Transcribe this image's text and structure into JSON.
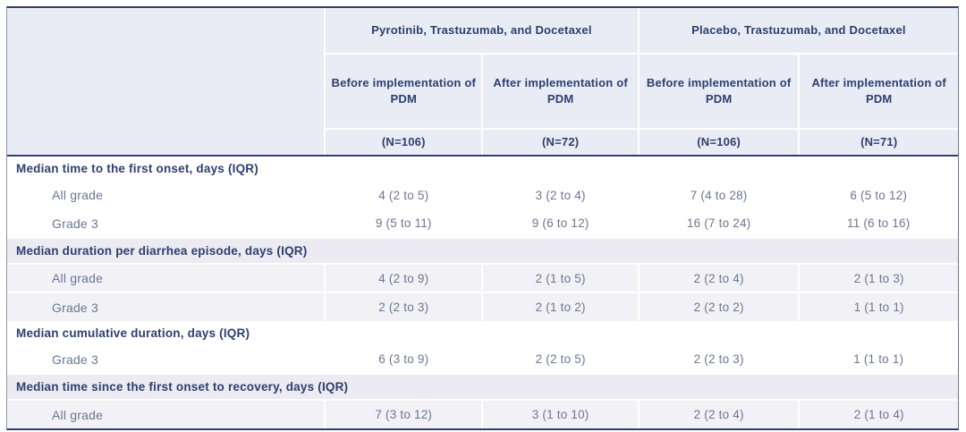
{
  "table": {
    "group_headers": [
      {
        "label": "Pyrotinib, Trastuzumab, and Docetaxel"
      },
      {
        "label": "Placebo, Trastuzumab, and Docetaxel"
      }
    ],
    "column_headers": [
      {
        "label": "Before implementation of PDM",
        "n": "(N=106)"
      },
      {
        "label": "After implementation of PDM",
        "n": "(N=72)"
      },
      {
        "label": "Before implementation of PDM",
        "n": "(N=106)"
      },
      {
        "label": "After implementation of PDM",
        "n": "(N=71)"
      }
    ],
    "sections": [
      {
        "title": "Median time to the first onset, days (IQR)",
        "shaded": false,
        "rows": [
          {
            "label": "All grade",
            "values": [
              "4 (2 to 5)",
              "3 (2 to 4)",
              "7 (4 to 28)",
              "6 (5 to 12)"
            ]
          },
          {
            "label": "Grade 3",
            "values": [
              "9 (5 to 11)",
              "9 (6 to 12)",
              "16 (7 to 24)",
              "11 (6 to 16)"
            ]
          }
        ]
      },
      {
        "title": "Median duration per diarrhea episode, days (IQR)",
        "shaded": true,
        "rows": [
          {
            "label": "All grade",
            "values": [
              "4 (2 to 9)",
              "2 (1 to 5)",
              "2 (2 to 4)",
              "2 (1 to 3)"
            ]
          },
          {
            "label": "Grade 3",
            "values": [
              "2 (2 to 3)",
              "2 (1 to 2)",
              "2 (2 to 2)",
              "1 (1 to 1)"
            ]
          }
        ]
      },
      {
        "title": "Median cumulative duration, days (IQR)",
        "shaded": false,
        "rows": [
          {
            "label": "Grade 3",
            "values": [
              "6 (3 to 9)",
              "2 (2 to 5)",
              "2 (2 to 3)",
              "1 (1 to 1)"
            ]
          }
        ]
      },
      {
        "title": "Median time since the first onset to recovery, days (IQR)",
        "shaded": true,
        "rows": [
          {
            "label": "All grade",
            "values": [
              "7 (3 to 12)",
              "3 (1 to 10)",
              "2 (2 to 4)",
              "2 (1 to 4)"
            ]
          }
        ]
      }
    ],
    "colors": {
      "header_bg": "#e9ecf5",
      "navy_text": "#2e3f6e",
      "muted_text": "#6b7691",
      "shaded_title_bg": "#ebebf1",
      "shaded_row_bg": "#f2f2f6",
      "frame_border": "#333f6b"
    }
  }
}
